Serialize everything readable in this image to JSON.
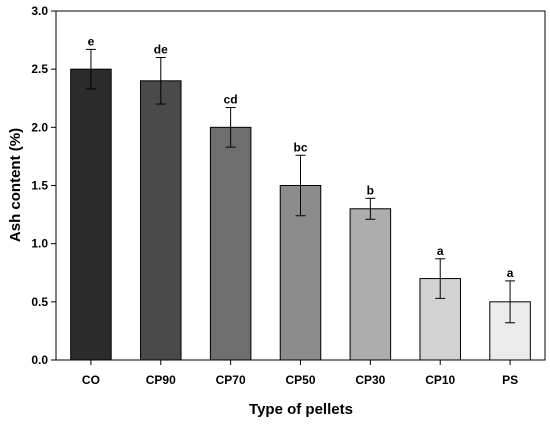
{
  "chart_data": {
    "type": "bar",
    "title": "",
    "xlabel": "Type of pellets",
    "ylabel": "Ash content (%)",
    "categories": [
      "CO",
      "CP90",
      "CP70",
      "CP50",
      "CP30",
      "CP10",
      "PS"
    ],
    "values": [
      2.5,
      2.4,
      2.0,
      1.5,
      1.3,
      0.7,
      0.5
    ],
    "errors": [
      0.17,
      0.2,
      0.17,
      0.26,
      0.09,
      0.17,
      0.18
    ],
    "significance_labels": [
      "e",
      "de",
      "cd",
      "bc",
      "b",
      "a",
      "a"
    ],
    "ylim": [
      0,
      3.0
    ],
    "yticks": [
      "0.0",
      "0.5",
      "1.0",
      "1.5",
      "2.0",
      "2.5",
      "3.0"
    ],
    "bar_colors": [
      "#2b2b2b",
      "#4a4a4a",
      "#6e6e6e",
      "#8c8c8c",
      "#adadad",
      "#d2d2d2",
      "#ececec"
    ],
    "grid": false,
    "legend": "none"
  }
}
